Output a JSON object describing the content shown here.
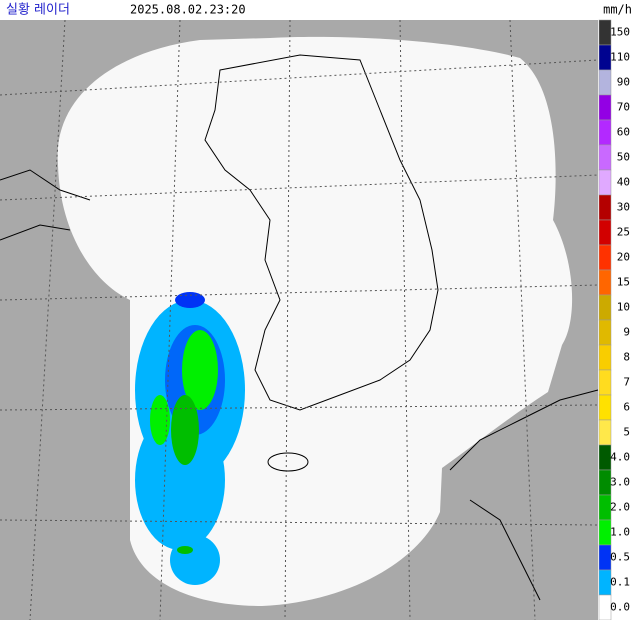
{
  "header": {
    "title": "실황 레이더",
    "time": "2025.08.02.23:20",
    "unit": "mm/h"
  },
  "legend": [
    {
      "label": "150",
      "color": "#333333"
    },
    {
      "label": "110",
      "color": "#000390"
    },
    {
      "label": "90",
      "color": "#b3b4de"
    },
    {
      "label": "70",
      "color": "#9300e4"
    },
    {
      "label": "60",
      "color": "#b329ff"
    },
    {
      "label": "50",
      "color": "#c969ff"
    },
    {
      "label": "40",
      "color": "#e0a9ff"
    },
    {
      "label": "30",
      "color": "#b40000"
    },
    {
      "label": "25",
      "color": "#d20000"
    },
    {
      "label": "20",
      "color": "#ff3200"
    },
    {
      "label": "15",
      "color": "#ff6600"
    },
    {
      "label": "10",
      "color": "#ccaa00"
    },
    {
      "label": "9",
      "color": "#e0b900"
    },
    {
      "label": "8",
      "color": "#f9cd00"
    },
    {
      "label": "7",
      "color": "#ffdc1f"
    },
    {
      "label": "6",
      "color": "#ffe100"
    },
    {
      "label": "5",
      "color": "#ffe84a"
    },
    {
      "label": "4.0",
      "color": "#005a00"
    },
    {
      "label": "3.0",
      "color": "#008c00"
    },
    {
      "label": "2.0",
      "color": "#00be00"
    },
    {
      "label": "1.0",
      "color": "#00f000"
    },
    {
      "label": "0.5",
      "color": "#0033f5"
    },
    {
      "label": "0.1",
      "color": "#00b4ff"
    },
    {
      "label": "0.0",
      "color": "#ffffff"
    }
  ]
}
